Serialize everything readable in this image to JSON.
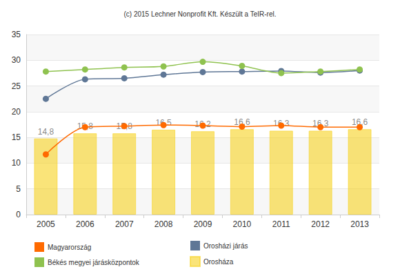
{
  "chart_data": {
    "type": "bar",
    "title": "(c) 2015 Lechner Nonprofit Kft. Készült a TeIR-rel.",
    "categories": [
      "2005",
      "2006",
      "2007",
      "2008",
      "2009",
      "2010",
      "2011",
      "2012",
      "2013"
    ],
    "series": [
      {
        "name": "Magyarország",
        "type": "line",
        "color": "#ff6a00",
        "marker": "circle",
        "line_style": "smooth",
        "values": [
          11.7,
          17.0,
          17.2,
          17.4,
          17.3,
          17.1,
          17.3,
          17.0,
          17.0
        ]
      },
      {
        "name": "Orosházi járás",
        "type": "line",
        "color": "#5f7796",
        "marker": "circle",
        "line_style": "smooth",
        "values": [
          22.5,
          26.3,
          26.5,
          27.2,
          27.7,
          27.8,
          27.9,
          27.6,
          28.0
        ]
      },
      {
        "name": "Békés megyei járásközpontok",
        "type": "line",
        "color": "#8fc24f",
        "marker": "circle",
        "line_style": "smooth",
        "values": [
          27.8,
          28.2,
          28.6,
          28.8,
          29.7,
          28.9,
          27.5,
          27.8,
          28.2
        ]
      },
      {
        "name": "Orosháza",
        "type": "bar",
        "color": "#f7d21f",
        "values": [
          14.8,
          15.8,
          15.8,
          16.5,
          16.2,
          16.6,
          16.3,
          16.3,
          16.6
        ],
        "value_labels": [
          "14,8",
          "15,8",
          "15,8",
          "16,5",
          "16,2",
          "16,6",
          "16,3",
          "16,3",
          "16,6"
        ]
      }
    ],
    "ylim": [
      0,
      35
    ],
    "yticks": [
      0,
      5,
      10,
      15,
      20,
      25,
      30,
      35
    ],
    "grid": true,
    "legend": "bottom",
    "data_labels": true
  }
}
